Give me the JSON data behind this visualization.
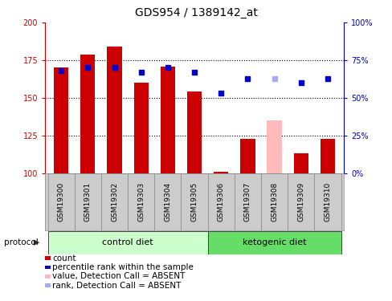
{
  "title": "GDS954 / 1389142_at",
  "samples": [
    "GSM19300",
    "GSM19301",
    "GSM19302",
    "GSM19303",
    "GSM19304",
    "GSM19305",
    "GSM19306",
    "GSM19307",
    "GSM19308",
    "GSM19309",
    "GSM19310"
  ],
  "bar_values": [
    170,
    179,
    184,
    160,
    171,
    154,
    101,
    123,
    135,
    113,
    123
  ],
  "bar_colors": [
    "#cc0000",
    "#cc0000",
    "#cc0000",
    "#cc0000",
    "#cc0000",
    "#cc0000",
    "#cc0000",
    "#cc0000",
    "#ffbbbb",
    "#cc0000",
    "#cc0000"
  ],
  "rank_values": [
    68,
    70,
    70,
    67,
    70,
    67,
    53,
    63,
    63,
    60,
    63
  ],
  "rank_colors": [
    "#0000cc",
    "#0000cc",
    "#0000cc",
    "#0000cc",
    "#0000cc",
    "#0000cc",
    "#0000cc",
    "#0000cc",
    "#aaaaee",
    "#0000cc",
    "#0000cc"
  ],
  "ylim_left": [
    100,
    200
  ],
  "ylim_right": [
    0,
    100
  ],
  "yticks_left": [
    100,
    125,
    150,
    175,
    200
  ],
  "yticks_right": [
    0,
    25,
    50,
    75,
    100
  ],
  "ytick_labels_right": [
    "0%",
    "25%",
    "50%",
    "75%",
    "100%"
  ],
  "control_label": "control diet",
  "ketogenic_label": "ketogenic diet",
  "protocol_label": "protocol",
  "n_control": 6,
  "n_ketogenic": 5,
  "bar_width": 0.55,
  "axis_color_left": "#cc0000",
  "axis_color_right": "#0000bb",
  "ctrl_color": "#ccffcc",
  "keto_color": "#66dd66",
  "label_bg": "#cccccc"
}
